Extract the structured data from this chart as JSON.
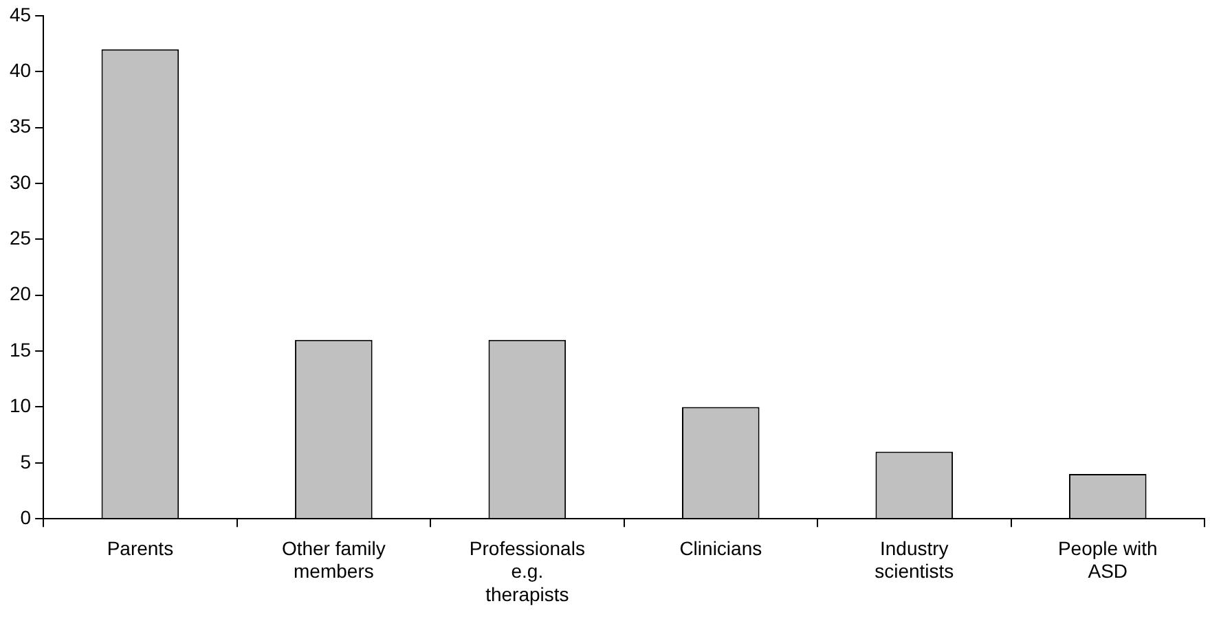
{
  "chart_data": {
    "type": "bar",
    "categories": [
      "Parents",
      "Other family members",
      "Professionals e.g. therapists",
      "Clinicians",
      "Industry scientists",
      "People with ASD"
    ],
    "values": [
      42,
      16,
      16,
      10,
      6,
      4
    ],
    "color": "#c0c0c0",
    "ylim": [
      0,
      45
    ],
    "yticks": [
      0,
      5,
      10,
      15,
      20,
      25,
      30,
      35,
      40,
      45
    ],
    "grid": false,
    "legend": false
  }
}
